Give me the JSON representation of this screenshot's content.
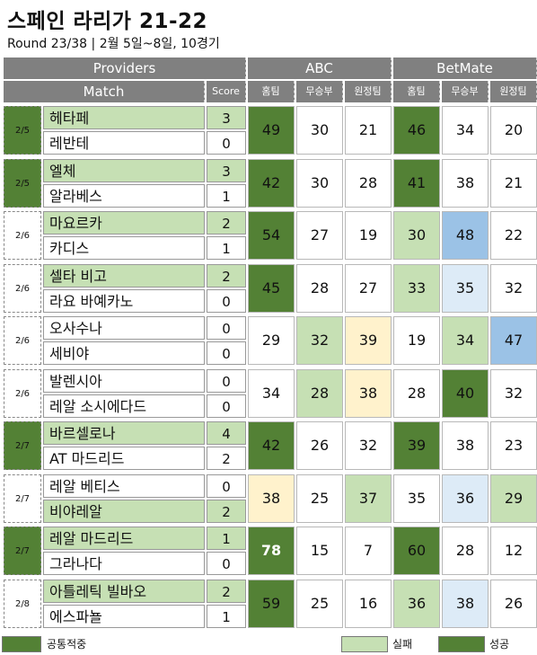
{
  "title": "스페인 라리가 21-22",
  "subtitle": "Round 23/38 | 2월 5일~8일, 10경기",
  "colors": {
    "dark_green": "#538135",
    "light_green": "#c6e0b4",
    "light_yellow": "#fff2cc",
    "light_blue": "#ddebf7",
    "mid_blue": "#9bc2e6",
    "header_gray": "#808080"
  },
  "header": {
    "providers": "Providers",
    "match": "Match",
    "score": "Score",
    "abc": "ABC",
    "betmate": "BetMate",
    "home": "홈팀",
    "draw": "무승부",
    "away": "원정팀"
  },
  "matches": [
    {
      "date": "2/5",
      "date_hl": true,
      "home": "헤타페",
      "away": "레반테",
      "hs": "3",
      "as": "0",
      "home_hl": true,
      "away_hl": false,
      "abc": [
        "49",
        "30",
        "21"
      ],
      "bet": [
        "46",
        "34",
        "20"
      ],
      "abc_c": [
        "dg",
        "",
        ""
      ],
      "bet_c": [
        "dg",
        "",
        ""
      ],
      "bold": [
        false,
        false,
        false,
        false,
        false,
        false
      ]
    },
    {
      "date": "2/5",
      "date_hl": true,
      "home": "엘체",
      "away": "알라베스",
      "hs": "3",
      "as": "1",
      "home_hl": true,
      "away_hl": false,
      "abc": [
        "42",
        "30",
        "28"
      ],
      "bet": [
        "41",
        "38",
        "21"
      ],
      "abc_c": [
        "dg",
        "",
        ""
      ],
      "bet_c": [
        "dg",
        "",
        ""
      ],
      "bold": [
        false,
        false,
        false,
        false,
        false,
        false
      ]
    },
    {
      "date": "2/6",
      "date_hl": false,
      "home": "마요르카",
      "away": "카디스",
      "hs": "2",
      "as": "1",
      "home_hl": true,
      "away_hl": false,
      "abc": [
        "54",
        "27",
        "19"
      ],
      "bet": [
        "30",
        "48",
        "22"
      ],
      "abc_c": [
        "dg",
        "",
        ""
      ],
      "bet_c": [
        "lg",
        "mb",
        ""
      ],
      "bold": [
        false,
        false,
        false,
        false,
        false,
        false
      ]
    },
    {
      "date": "2/6",
      "date_hl": false,
      "home": "셀타 비고",
      "away": "라요 바예카노",
      "hs": "2",
      "as": "0",
      "home_hl": true,
      "away_hl": false,
      "abc": [
        "45",
        "28",
        "27"
      ],
      "bet": [
        "33",
        "35",
        "32"
      ],
      "abc_c": [
        "dg",
        "",
        ""
      ],
      "bet_c": [
        "lg",
        "lb",
        ""
      ],
      "bold": [
        false,
        false,
        false,
        false,
        false,
        false
      ]
    },
    {
      "date": "2/6",
      "date_hl": false,
      "home": "오사수나",
      "away": "세비야",
      "hs": "0",
      "as": "0",
      "home_hl": false,
      "away_hl": false,
      "abc": [
        "29",
        "32",
        "39"
      ],
      "bet": [
        "19",
        "34",
        "47"
      ],
      "abc_c": [
        "",
        "lg",
        "ly"
      ],
      "bet_c": [
        "",
        "lg",
        "mb"
      ],
      "bold": [
        false,
        false,
        false,
        false,
        false,
        false
      ]
    },
    {
      "date": "2/6",
      "date_hl": false,
      "home": "발렌시아",
      "away": "레알 소시에다드",
      "hs": "0",
      "as": "0",
      "home_hl": false,
      "away_hl": false,
      "abc": [
        "34",
        "28",
        "38"
      ],
      "bet": [
        "28",
        "40",
        "32"
      ],
      "abc_c": [
        "",
        "lg",
        "ly"
      ],
      "bet_c": [
        "",
        "dg",
        ""
      ],
      "bold": [
        false,
        false,
        false,
        false,
        false,
        false
      ]
    },
    {
      "date": "2/7",
      "date_hl": true,
      "home": "바르셀로나",
      "away": "AT 마드리드",
      "hs": "4",
      "as": "2",
      "home_hl": true,
      "away_hl": false,
      "abc": [
        "42",
        "26",
        "32"
      ],
      "bet": [
        "39",
        "38",
        "23"
      ],
      "abc_c": [
        "dg",
        "",
        ""
      ],
      "bet_c": [
        "dg",
        "",
        ""
      ],
      "bold": [
        false,
        false,
        false,
        false,
        false,
        false
      ]
    },
    {
      "date": "2/7",
      "date_hl": false,
      "home": "레알 베티스",
      "away": "비야레알",
      "hs": "0",
      "as": "2",
      "home_hl": false,
      "away_hl": true,
      "abc": [
        "38",
        "25",
        "37"
      ],
      "bet": [
        "35",
        "36",
        "29"
      ],
      "abc_c": [
        "ly",
        "",
        "lg"
      ],
      "bet_c": [
        "",
        "lb",
        "lg"
      ],
      "bold": [
        false,
        false,
        false,
        false,
        false,
        false
      ]
    },
    {
      "date": "2/7",
      "date_hl": true,
      "home": "레알 마드리드",
      "away": "그라나다",
      "hs": "1",
      "as": "0",
      "home_hl": true,
      "away_hl": false,
      "abc": [
        "78",
        "15",
        "7"
      ],
      "bet": [
        "60",
        "28",
        "12"
      ],
      "abc_c": [
        "dg",
        "",
        ""
      ],
      "bet_c": [
        "dg",
        "",
        ""
      ],
      "bold": [
        true,
        false,
        false,
        false,
        false,
        false
      ]
    },
    {
      "date": "2/8",
      "date_hl": false,
      "home": "아틀레틱 빌바오",
      "away": "에스파뇰",
      "hs": "2",
      "as": "1",
      "home_hl": true,
      "away_hl": false,
      "abc": [
        "59",
        "25",
        "16"
      ],
      "bet": [
        "36",
        "38",
        "26"
      ],
      "abc_c": [
        "dg",
        "",
        ""
      ],
      "bet_c": [
        "lg",
        "lb",
        ""
      ],
      "bold": [
        false,
        false,
        false,
        false,
        false,
        false
      ]
    }
  ],
  "legend": {
    "common": "공통적중",
    "fail": "실패",
    "success": "성공"
  }
}
